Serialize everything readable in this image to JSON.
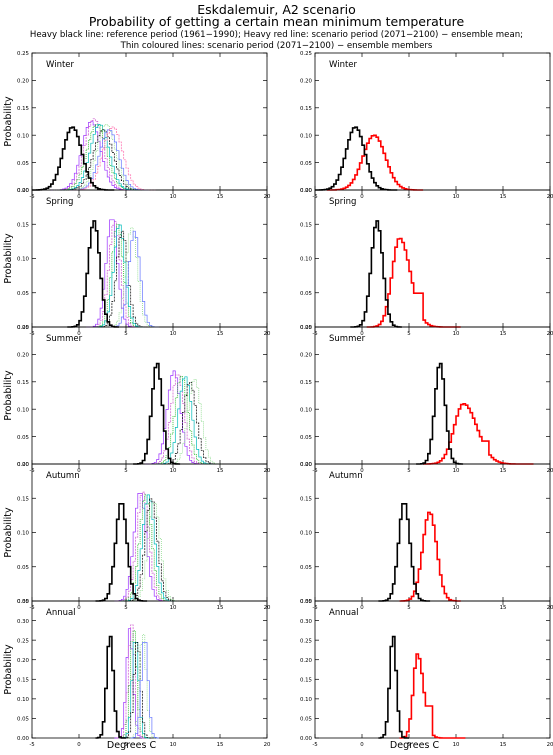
{
  "header": {
    "title": "Eskdalemuir, A2 scenario",
    "subtitle": "Probability of getting a certain mean minimum temperature",
    "line1": "Heavy black line: reference period (1961−1990); Heavy red line: scenario period (2071−2100) − ensemble mean;",
    "line2": "Thin coloured lines: scenario period (2071−2100) − ensemble members"
  },
  "ylabel": "Probability",
  "xlabel": "Degrees C",
  "colors": {
    "reference": "#000000",
    "ensemble_mean": "#ff0000",
    "members": [
      "#9b30ff",
      "#cc55cc",
      "#00aa00",
      "#00bbbb",
      "#000000",
      "#7fd77f",
      "#6677ff",
      "#ff66aa",
      "#cc9900",
      "#1a7f1a",
      "#555555"
    ]
  },
  "chart_data": [
    {
      "type": "line",
      "panel": "Winter",
      "column": "members",
      "xlim": [
        -5,
        20
      ],
      "ylim": [
        0,
        0.25
      ],
      "yticks": [
        "0.00",
        "0.05",
        "0.10",
        "0.15",
        "0.20",
        "0.25"
      ],
      "xticks": [
        "-5",
        "0",
        "5",
        "10",
        "15",
        "20"
      ],
      "reference": {
        "mean": -0.7,
        "sd": 1.0,
        "peak": 0.115
      },
      "members": [
        {
          "mean": 1.3,
          "sd": 1.0,
          "peak": 0.125
        },
        {
          "mean": 1.6,
          "sd": 1.0,
          "peak": 0.13
        },
        {
          "mean": 1.9,
          "sd": 1.05,
          "peak": 0.12
        },
        {
          "mean": 2.2,
          "sd": 1.0,
          "peak": 0.12
        },
        {
          "mean": 2.6,
          "sd": 1.05,
          "peak": 0.11
        },
        {
          "mean": 2.9,
          "sd": 1.0,
          "peak": 0.12
        },
        {
          "mean": 3.2,
          "sd": 1.0,
          "peak": 0.11
        },
        {
          "mean": 3.6,
          "sd": 1.05,
          "peak": 0.115
        }
      ]
    },
    {
      "type": "line",
      "panel": "Winter",
      "column": "mean",
      "xlim": [
        -5,
        20
      ],
      "ylim": [
        0,
        0.25
      ],
      "yticks": [
        "0.00",
        "0.05",
        "0.10",
        "0.15",
        "0.20",
        "0.25"
      ],
      "xticks": [
        "-5",
        "0",
        "5",
        "10",
        "15",
        "20"
      ],
      "reference": {
        "mean": -0.7,
        "sd": 1.0,
        "peak": 0.115
      },
      "ensemble_mean": {
        "mean": 1.3,
        "sd": 1.2,
        "peak": 0.1
      }
    },
    {
      "type": "line",
      "panel": "Spring",
      "column": "members",
      "xlim": [
        -5,
        20
      ],
      "ylim": [
        0,
        0.2
      ],
      "yticks": [
        "0.00",
        "0.05",
        "0.10",
        "0.15",
        "0.20"
      ],
      "xticks": [
        "-5",
        "0",
        "5",
        "10",
        "15",
        "20"
      ],
      "reference": {
        "mean": 1.6,
        "sd": 0.62,
        "peak": 0.155
      },
      "members": [
        {
          "mean": 3.5,
          "sd": 0.6,
          "peak": 0.16
        },
        {
          "mean": 3.8,
          "sd": 0.6,
          "peak": 0.155
        },
        {
          "mean": 4.1,
          "sd": 0.6,
          "peak": 0.15
        },
        {
          "mean": 4.3,
          "sd": 0.6,
          "peak": 0.15
        },
        {
          "mean": 4.6,
          "sd": 0.6,
          "peak": 0.14
        },
        {
          "mean": 5.6,
          "sd": 0.62,
          "peak": 0.145
        },
        {
          "mean": 5.9,
          "sd": 0.6,
          "peak": 0.14
        }
      ]
    },
    {
      "type": "line",
      "panel": "Spring",
      "column": "mean",
      "xlim": [
        -5,
        20
      ],
      "ylim": [
        0,
        0.2
      ],
      "yticks": [
        "0.00",
        "0.05",
        "0.10",
        "0.15",
        "0.20"
      ],
      "xticks": [
        "-5",
        "0",
        "5",
        "10",
        "15",
        "20"
      ],
      "reference": {
        "mean": 1.6,
        "sd": 0.62,
        "peak": 0.155
      },
      "ensemble_mean": {
        "mean": 4.0,
        "sd": 0.8,
        "peak": 0.13,
        "tail": 6.0
      }
    },
    {
      "type": "line",
      "panel": "Summer",
      "column": "members",
      "xlim": [
        -5,
        20
      ],
      "ylim": [
        0,
        0.25
      ],
      "yticks": [
        "0.00",
        "0.05",
        "0.10",
        "0.15",
        "0.20",
        "0.25"
      ],
      "xticks": [
        "-5",
        "0",
        "5",
        "10",
        "15",
        "20"
      ],
      "reference": {
        "mean": 8.3,
        "sd": 0.55,
        "peak": 0.185
      },
      "members": [
        {
          "mean": 10.1,
          "sd": 0.7,
          "peak": 0.17
        },
        {
          "mean": 10.5,
          "sd": 0.7,
          "peak": 0.165
        },
        {
          "mean": 10.9,
          "sd": 0.7,
          "peak": 0.16
        },
        {
          "mean": 11.3,
          "sd": 0.7,
          "peak": 0.16
        },
        {
          "mean": 11.8,
          "sd": 0.7,
          "peak": 0.15
        },
        {
          "mean": 12.3,
          "sd": 0.7,
          "peak": 0.155
        }
      ]
    },
    {
      "type": "line",
      "panel": "Summer",
      "column": "mean",
      "xlim": [
        -5,
        20
      ],
      "ylim": [
        0,
        0.25
      ],
      "yticks": [
        "0.00",
        "0.05",
        "0.10",
        "0.15",
        "0.20",
        "0.25"
      ],
      "xticks": [
        "-5",
        "0",
        "5",
        "10",
        "15",
        "20"
      ],
      "reference": {
        "mean": 8.3,
        "sd": 0.55,
        "peak": 0.185
      },
      "ensemble_mean": {
        "mean": 10.8,
        "sd": 1.0,
        "peak": 0.11,
        "tail": 13.0
      }
    },
    {
      "type": "line",
      "panel": "Autumn",
      "column": "members",
      "xlim": [
        -5,
        20
      ],
      "ylim": [
        0,
        0.2
      ],
      "yticks": [
        "0.00",
        "0.05",
        "0.10",
        "0.15",
        "0.20"
      ],
      "xticks": [
        "-5",
        "0",
        "5",
        "10",
        "15",
        "20"
      ],
      "reference": {
        "mean": 4.5,
        "sd": 0.6,
        "peak": 0.145
      },
      "members": [
        {
          "mean": 6.5,
          "sd": 0.65,
          "peak": 0.16
        },
        {
          "mean": 6.8,
          "sd": 0.65,
          "peak": 0.16
        },
        {
          "mean": 7.1,
          "sd": 0.65,
          "peak": 0.155
        },
        {
          "mean": 7.4,
          "sd": 0.65,
          "peak": 0.155
        },
        {
          "mean": 7.7,
          "sd": 0.65,
          "peak": 0.15
        },
        {
          "mean": 8.0,
          "sd": 0.65,
          "peak": 0.145
        }
      ]
    },
    {
      "type": "line",
      "panel": "Autumn",
      "column": "mean",
      "xlim": [
        -5,
        20
      ],
      "ylim": [
        0,
        0.2
      ],
      "yticks": [
        "0.00",
        "0.05",
        "0.10",
        "0.15",
        "0.20"
      ],
      "xticks": [
        "-5",
        "0",
        "5",
        "10",
        "15",
        "20"
      ],
      "reference": {
        "mean": 4.5,
        "sd": 0.6,
        "peak": 0.145
      },
      "ensemble_mean": {
        "mean": 7.2,
        "sd": 0.75,
        "peak": 0.13
      }
    },
    {
      "type": "line",
      "panel": "Annual",
      "column": "members",
      "xlim": [
        -5,
        20
      ],
      "ylim": [
        0,
        0.35
      ],
      "yticks": [
        "0.00",
        "0.05",
        "0.10",
        "0.15",
        "0.20",
        "0.25",
        "0.30",
        "0.35"
      ],
      "xticks": [
        "-5",
        "0",
        "5",
        "10",
        "15",
        "20"
      ],
      "reference": {
        "mean": 3.3,
        "sd": 0.35,
        "peak": 0.265
      },
      "members": [
        {
          "mean": 5.4,
          "sd": 0.35,
          "peak": 0.28
        },
        {
          "mean": 5.6,
          "sd": 0.35,
          "peak": 0.29
        },
        {
          "mean": 5.8,
          "sd": 0.35,
          "peak": 0.28
        },
        {
          "mean": 6.0,
          "sd": 0.35,
          "peak": 0.26
        },
        {
          "mean": 6.2,
          "sd": 0.35,
          "peak": 0.25
        },
        {
          "mean": 6.8,
          "sd": 0.35,
          "peak": 0.27
        },
        {
          "mean": 7.0,
          "sd": 0.35,
          "peak": 0.26
        }
      ]
    },
    {
      "type": "line",
      "panel": "Annual",
      "column": "mean",
      "xlim": [
        -5,
        20
      ],
      "ylim": [
        0,
        0.35
      ],
      "yticks": [
        "0.00",
        "0.05",
        "0.10",
        "0.15",
        "0.20",
        "0.25",
        "0.30",
        "0.35"
      ],
      "xticks": [
        "-5",
        "0",
        "5",
        "10",
        "15",
        "20"
      ],
      "reference": {
        "mean": 3.3,
        "sd": 0.35,
        "peak": 0.265
      },
      "ensemble_mean": {
        "mean": 5.9,
        "sd": 0.45,
        "peak": 0.215,
        "tail": 7.1
      }
    }
  ]
}
